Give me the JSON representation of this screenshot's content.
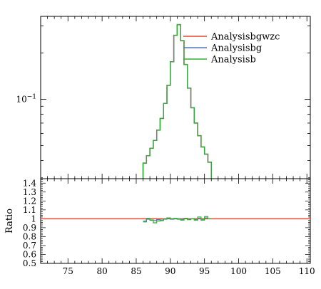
{
  "chart_data": [
    {
      "panel": "main",
      "type": "line",
      "title": "",
      "xlabel": "",
      "ylabel": "",
      "xlim": [
        71,
        110.5
      ],
      "ylim": [
        0.0305,
        0.345
      ],
      "yscale": "log",
      "y_ticks": [
        {
          "value": 0.1,
          "label": "10^-1"
        }
      ],
      "legend": {
        "placement": "top-right",
        "entries": [
          "Analysisbgwzc",
          "Analysisbg",
          "Analysisb"
        ]
      },
      "bin_edges": [
        86,
        86.5,
        87,
        87.5,
        88,
        88.5,
        89,
        89.5,
        90,
        90.5,
        91,
        91.5,
        92,
        92.5,
        93,
        93.5,
        94,
        94.5,
        95,
        95.5,
        96
      ],
      "series": [
        {
          "name": "Analysisbgwzc",
          "color": "#e8472d",
          "values": [
            0.0385,
            0.043,
            0.048,
            0.054,
            0.063,
            0.075,
            0.094,
            0.123,
            0.175,
            0.26,
            0.305,
            0.24,
            0.168,
            0.118,
            0.088,
            0.07,
            0.058,
            0.049,
            0.044,
            0.039
          ]
        },
        {
          "name": "Analysisbg",
          "color": "#5078c0",
          "values": [
            0.0385,
            0.043,
            0.048,
            0.054,
            0.063,
            0.075,
            0.094,
            0.123,
            0.175,
            0.26,
            0.305,
            0.24,
            0.168,
            0.118,
            0.088,
            0.07,
            0.058,
            0.049,
            0.044,
            0.039
          ]
        },
        {
          "name": "Analysisb",
          "color": "#2fb12f",
          "values": [
            0.0385,
            0.043,
            0.048,
            0.054,
            0.063,
            0.075,
            0.094,
            0.123,
            0.175,
            0.26,
            0.305,
            0.24,
            0.168,
            0.118,
            0.088,
            0.07,
            0.058,
            0.049,
            0.044,
            0.039
          ]
        }
      ]
    },
    {
      "panel": "ratio",
      "type": "line",
      "xlabel": "",
      "ylabel": "Ratio",
      "xlim": [
        71,
        110.5
      ],
      "ylim": [
        0.5,
        1.45
      ],
      "x_ticks": [
        75,
        80,
        85,
        90,
        95,
        100,
        105,
        110
      ],
      "y_ticks": [
        0.5,
        0.6,
        0.7,
        0.8,
        0.9,
        1,
        1.1,
        1.2,
        1.3,
        1.4
      ],
      "reference": {
        "name": "Analysisbgwzc",
        "value": 1.0,
        "color": "#e8472d"
      },
      "bin_edges": [
        86,
        86.5,
        87,
        87.5,
        88,
        88.5,
        89,
        89.5,
        90,
        90.5,
        91,
        91.5,
        92,
        92.5,
        93,
        93.5,
        94,
        94.5,
        95,
        95.5,
        96
      ],
      "series": [
        {
          "name": "Analysisbg",
          "color": "#5078c0",
          "values": [
            0.975,
            0.995,
            0.985,
            0.98,
            0.99,
            0.985,
            1.0,
            1.005,
            0.995,
            1.0,
            1.0,
            0.995,
            1.005,
            0.995,
            1.0,
            0.99,
            1.005,
            0.995,
            1.01,
            1.0
          ]
        },
        {
          "name": "Analysisb",
          "color": "#2fb12f",
          "values": [
            0.965,
            1.005,
            0.985,
            0.955,
            0.975,
            0.98,
            0.995,
            1.01,
            1.0,
            1.005,
            0.995,
            0.985,
            1.005,
            0.99,
            1.0,
            0.985,
            1.02,
            0.985,
            1.025,
            1.0
          ]
        }
      ]
    }
  ]
}
